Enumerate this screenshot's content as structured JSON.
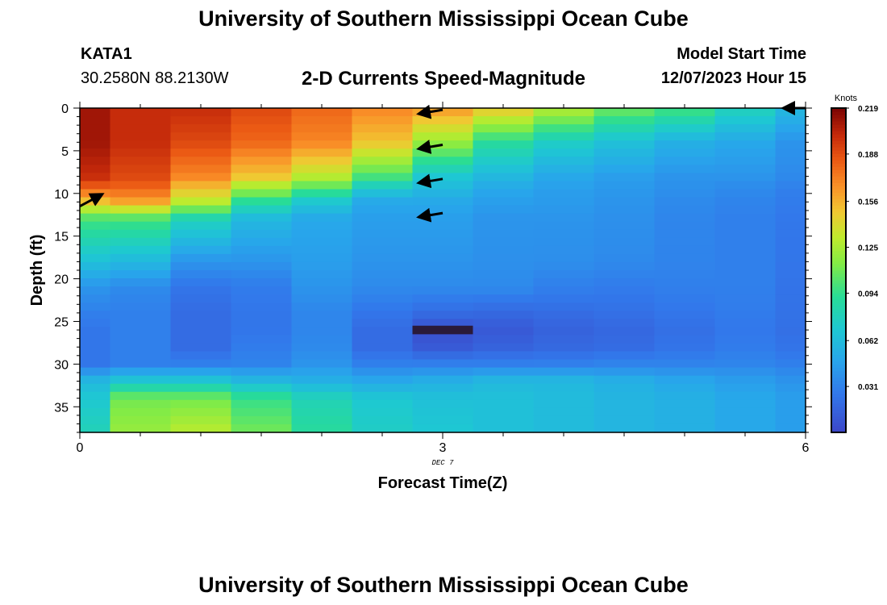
{
  "header": {
    "title": "University of Southern Mississippi Ocean Cube",
    "station": "KATA1",
    "coords": "30.2580N  88.2130W",
    "subtitle": "2-D Currents Speed-Magnitude",
    "model_label": "Model Start Time",
    "model_time": "12/07/2023 Hour 15"
  },
  "footer": {
    "title": "University of Southern Mississippi Ocean Cube"
  },
  "chart_data": {
    "type": "heatmap",
    "title": "2-D Currents Speed-Magnitude",
    "xlabel": "Forecast Time(Z)",
    "ylabel": "Depth (ft)",
    "x_date_label": "DEC 7",
    "x_ticks": [
      0,
      3,
      6
    ],
    "x_tick_labels": [
      "0",
      "3",
      "6"
    ],
    "xlim": [
      0,
      6
    ],
    "y_ticks": [
      0,
      5,
      10,
      15,
      20,
      25,
      30,
      35
    ],
    "y_tick_labels": [
      "0",
      "5",
      "10",
      "15",
      "20",
      "25",
      "30",
      "35"
    ],
    "ylim": [
      0,
      38
    ],
    "y_inverted": true,
    "colorbar": {
      "units": "Knots",
      "min": 0,
      "max": 0.219,
      "tick_values": [
        0.031,
        0.062,
        0.094,
        0.125,
        0.156,
        0.188,
        0.219
      ],
      "tick_labels": [
        "0.031",
        "0.062",
        "0.094",
        "0.125",
        "0.156",
        "0.188",
        "0.219"
      ]
    },
    "columns_hours": [
      0,
      0.5,
      1,
      1.5,
      2,
      2.5,
      3,
      3.5,
      4,
      4.5,
      5,
      5.5,
      6
    ],
    "depth_profile_ft": [
      0,
      4,
      8,
      9.5,
      11,
      13,
      18,
      21,
      24,
      26,
      28,
      30,
      32,
      34,
      38
    ],
    "speed_knots": [
      [
        0.21,
        0.21,
        0.2,
        0.18,
        0.15,
        0.1,
        0.065,
        0.04,
        0.03,
        0.025,
        0.025,
        0.025,
        0.06,
        0.07,
        0.08
      ],
      [
        0.2,
        0.2,
        0.19,
        0.18,
        0.16,
        0.1,
        0.06,
        0.035,
        0.03,
        0.03,
        0.03,
        0.03,
        0.07,
        0.11,
        0.12
      ],
      [
        0.2,
        0.19,
        0.17,
        0.15,
        0.13,
        0.08,
        0.04,
        0.025,
        0.02,
        0.02,
        0.02,
        0.03,
        0.07,
        0.11,
        0.13
      ],
      [
        0.19,
        0.18,
        0.15,
        0.12,
        0.09,
        0.06,
        0.04,
        0.028,
        0.025,
        0.025,
        0.028,
        0.032,
        0.06,
        0.095,
        0.11
      ],
      [
        0.18,
        0.17,
        0.13,
        0.1,
        0.07,
        0.05,
        0.045,
        0.04,
        0.033,
        0.033,
        0.035,
        0.04,
        0.055,
        0.08,
        0.09
      ],
      [
        0.17,
        0.15,
        0.1,
        0.07,
        0.05,
        0.045,
        0.04,
        0.035,
        0.025,
        0.02,
        0.02,
        0.03,
        0.05,
        0.07,
        0.075
      ],
      [
        0.165,
        0.12,
        0.07,
        0.06,
        0.05,
        0.045,
        0.04,
        0.035,
        0.02,
        0.005,
        0.01,
        0.03,
        0.055,
        0.065,
        0.07
      ],
      [
        0.15,
        0.09,
        0.06,
        0.05,
        0.045,
        0.04,
        0.038,
        0.035,
        0.018,
        0.01,
        0.015,
        0.03,
        0.06,
        0.065,
        0.065
      ],
      [
        0.13,
        0.075,
        0.05,
        0.045,
        0.043,
        0.04,
        0.037,
        0.03,
        0.02,
        0.015,
        0.018,
        0.03,
        0.06,
        0.062,
        0.062
      ],
      [
        0.11,
        0.065,
        0.045,
        0.042,
        0.04,
        0.038,
        0.035,
        0.028,
        0.022,
        0.018,
        0.02,
        0.032,
        0.055,
        0.058,
        0.058
      ],
      [
        0.1,
        0.055,
        0.04,
        0.038,
        0.035,
        0.033,
        0.032,
        0.03,
        0.025,
        0.022,
        0.024,
        0.032,
        0.05,
        0.055,
        0.055
      ],
      [
        0.08,
        0.05,
        0.04,
        0.035,
        0.032,
        0.03,
        0.03,
        0.03,
        0.028,
        0.026,
        0.028,
        0.033,
        0.045,
        0.05,
        0.05
      ],
      [
        0.06,
        0.04,
        0.035,
        0.03,
        0.028,
        0.026,
        0.025,
        0.024,
        0.023,
        0.022,
        0.024,
        0.03,
        0.04,
        0.045,
        0.045
      ]
    ],
    "blank_cell": {
      "hour": 3,
      "depth_ft": 26,
      "note": "no data"
    },
    "vectors": [
      {
        "hour": 3,
        "depth_ft": 0.2,
        "direction": "west"
      },
      {
        "hour": 3,
        "depth_ft": 4.3,
        "direction": "west"
      },
      {
        "hour": 3,
        "depth_ft": 8.3,
        "direction": "west"
      },
      {
        "hour": 3,
        "depth_ft": 12.3,
        "direction": "west"
      },
      {
        "hour": 0,
        "depth_ft": 11.5,
        "direction": "northeast"
      },
      {
        "hour": 6,
        "depth_ft": 0,
        "direction": "west"
      }
    ]
  }
}
